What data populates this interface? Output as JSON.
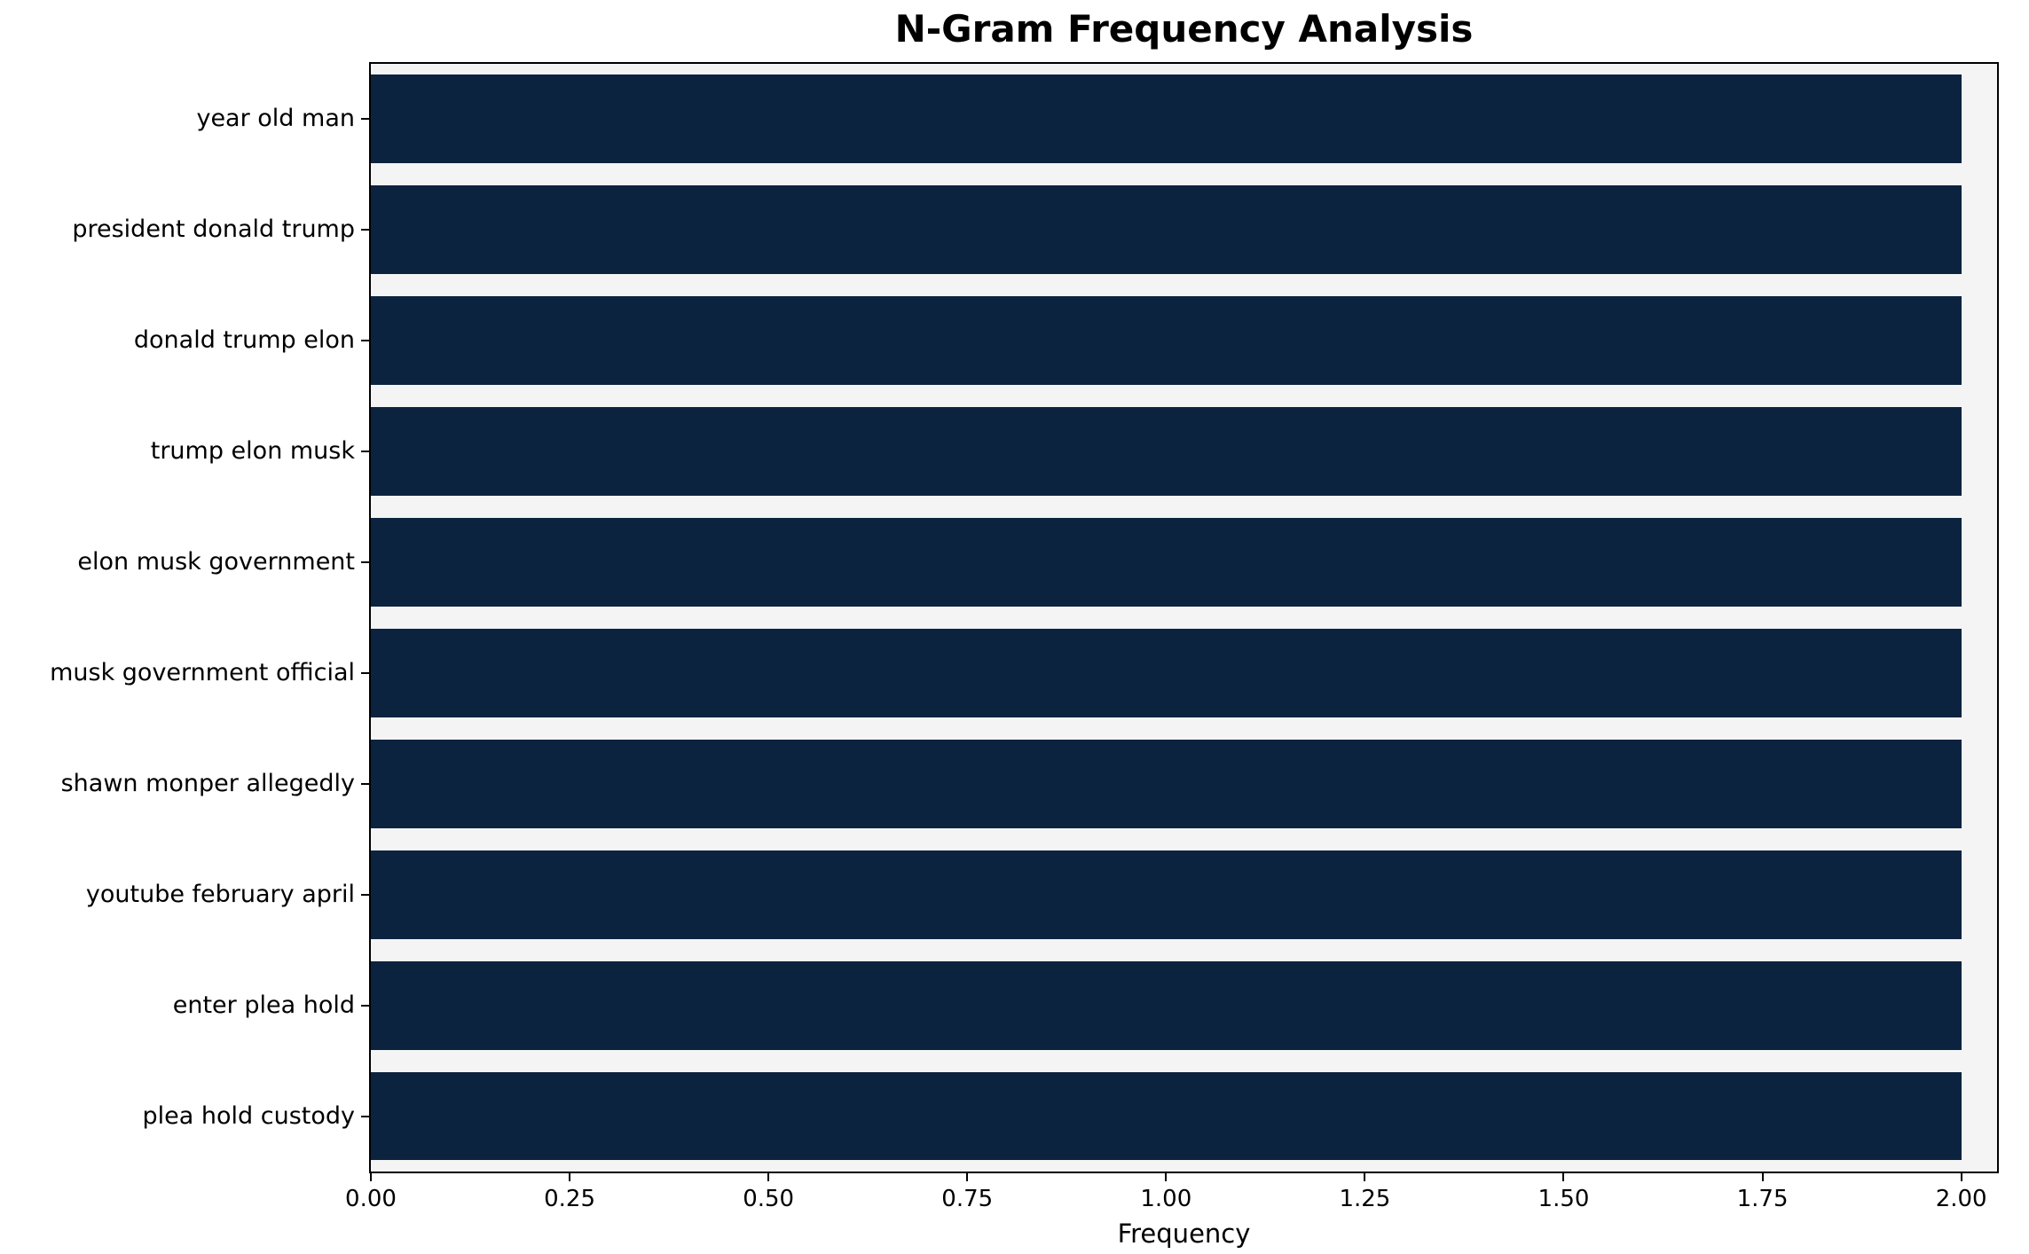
{
  "chart_data": {
    "type": "bar",
    "orientation": "horizontal",
    "title": "N-Gram Frequency Analysis",
    "xlabel": "Frequency",
    "ylabel": "",
    "categories": [
      "year old man",
      "president donald trump",
      "donald trump elon",
      "trump elon musk",
      "elon musk government",
      "musk government official",
      "shawn monper allegedly",
      "youtube february april",
      "enter plea hold",
      "plea hold custody"
    ],
    "values": [
      2,
      2,
      2,
      2,
      2,
      2,
      2,
      2,
      2,
      2
    ],
    "xlim": [
      0,
      2.045
    ],
    "xticks": [
      0.0,
      0.25,
      0.5,
      0.75,
      1.0,
      1.25,
      1.5,
      1.75,
      2.0
    ],
    "xtick_labels": [
      "0.00",
      "0.25",
      "0.50",
      "0.75",
      "1.00",
      "1.25",
      "1.50",
      "1.75",
      "2.00"
    ],
    "bar_color": "#0c2340",
    "plot_bg": "#f4f4f4",
    "grid": false,
    "legend": "none",
    "bar_height_fraction": 0.8
  }
}
